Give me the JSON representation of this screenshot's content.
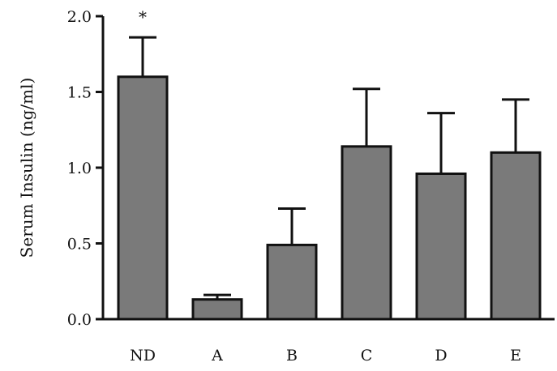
{
  "chart_data": {
    "type": "bar",
    "title": "",
    "xlabel": "",
    "ylabel": "Serum Insulin (ng/ml)",
    "categories": [
      "ND",
      "A",
      "B",
      "C",
      "D",
      "E"
    ],
    "values": [
      1.6,
      0.13,
      0.49,
      1.14,
      0.96,
      1.1
    ],
    "errors": [
      0.26,
      0.03,
      0.24,
      0.38,
      0.4,
      0.35
    ],
    "ylim": [
      0,
      2.0
    ],
    "yticks": [
      0.0,
      0.5,
      1.0,
      1.5,
      2.0
    ],
    "ytick_labels": [
      "0.0",
      "0.5",
      "1.0",
      "1.5",
      "2.0"
    ],
    "annotations": [
      {
        "category": "ND",
        "text": "*"
      }
    ],
    "grid": false,
    "legend": "none",
    "colors": {
      "bar_fill": "#7a7a7a",
      "bar_stroke": "#111111",
      "axis": "#111111"
    }
  }
}
